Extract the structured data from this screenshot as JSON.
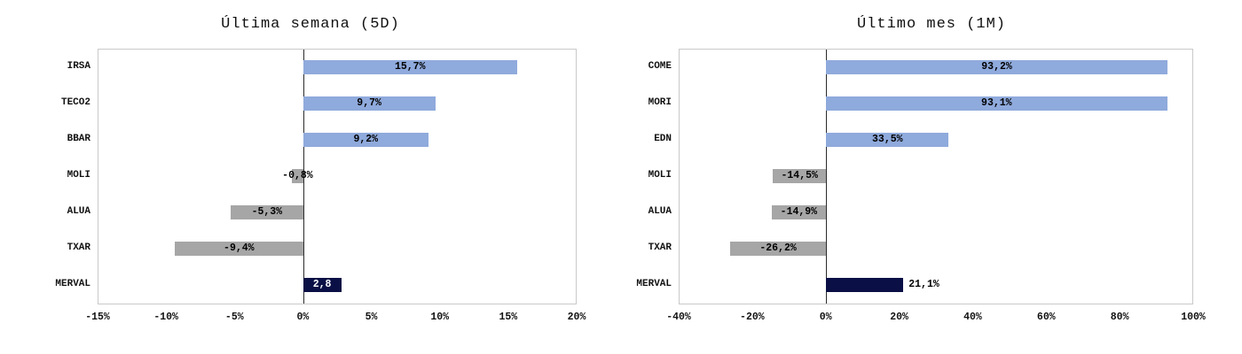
{
  "colors": {
    "positive": "#8FAADC",
    "negative": "#A6A6A6",
    "index": "#0A1045"
  },
  "chart_data": [
    {
      "type": "bar",
      "orientation": "horizontal",
      "title": "Última semana (5D)",
      "xlabel": "",
      "ylabel": "",
      "xlim": [
        -15,
        20
      ],
      "grid": false,
      "legend": false,
      "categories": [
        "IRSA",
        "TECO2",
        "BBAR",
        "MOLI",
        "ALUA",
        "TXAR",
        "MERVAL"
      ],
      "values": [
        15.7,
        9.7,
        9.2,
        -0.8,
        -5.3,
        -9.4,
        2.8
      ],
      "items": [
        {
          "name": "IRSA",
          "value": 15.7,
          "label": "15,7%",
          "kind": "positive"
        },
        {
          "name": "TECO2",
          "value": 9.7,
          "label": "9,7%",
          "kind": "positive"
        },
        {
          "name": "BBAR",
          "value": 9.2,
          "label": "9,2%",
          "kind": "positive"
        },
        {
          "name": "MOLI",
          "value": -0.8,
          "label": "-0,8%",
          "kind": "negative"
        },
        {
          "name": "ALUA",
          "value": -5.3,
          "label": "-5,3%",
          "kind": "negative"
        },
        {
          "name": "TXAR",
          "value": -9.4,
          "label": "-9,4%",
          "kind": "negative"
        },
        {
          "name": "MERVAL",
          "value": 2.8,
          "label": "2,8",
          "kind": "index",
          "label_color": "#ffffff"
        }
      ],
      "ticks": [
        {
          "value": -15,
          "label": "-15%"
        },
        {
          "value": -10,
          "label": "-10%"
        },
        {
          "value": -5,
          "label": "-5%"
        },
        {
          "value": 0,
          "label": "0%"
        },
        {
          "value": 5,
          "label": "5%"
        },
        {
          "value": 10,
          "label": "10%"
        },
        {
          "value": 15,
          "label": "15%"
        },
        {
          "value": 20,
          "label": "20%"
        }
      ]
    },
    {
      "type": "bar",
      "orientation": "horizontal",
      "title": "Último mes (1M)",
      "xlabel": "",
      "ylabel": "",
      "xlim": [
        -40,
        100
      ],
      "grid": false,
      "legend": false,
      "categories": [
        "COME",
        "MORI",
        "EDN",
        "MOLI",
        "ALUA",
        "TXAR",
        "MERVAL"
      ],
      "values": [
        93.2,
        93.1,
        33.5,
        -14.5,
        -14.9,
        -26.2,
        21.1
      ],
      "items": [
        {
          "name": "COME",
          "value": 93.2,
          "label": "93,2%",
          "kind": "positive"
        },
        {
          "name": "MORI",
          "value": 93.1,
          "label": "93,1%",
          "kind": "positive"
        },
        {
          "name": "EDN",
          "value": 33.5,
          "label": "33,5%",
          "kind": "positive"
        },
        {
          "name": "MOLI",
          "value": -14.5,
          "label": "-14,5%",
          "kind": "negative"
        },
        {
          "name": "ALUA",
          "value": -14.9,
          "label": "-14,9%",
          "kind": "negative"
        },
        {
          "name": "TXAR",
          "value": -26.2,
          "label": "-26,2%",
          "kind": "negative"
        },
        {
          "name": "MERVAL",
          "value": 21.1,
          "label": "21,1%",
          "kind": "index",
          "label_placement": "outside"
        }
      ],
      "ticks": [
        {
          "value": -40,
          "label": "-40%"
        },
        {
          "value": -20,
          "label": "-20%"
        },
        {
          "value": 0,
          "label": "0%"
        },
        {
          "value": 20,
          "label": "20%"
        },
        {
          "value": 40,
          "label": "40%"
        },
        {
          "value": 60,
          "label": "60%"
        },
        {
          "value": 80,
          "label": "80%"
        },
        {
          "value": 100,
          "label": "100%"
        }
      ]
    }
  ]
}
